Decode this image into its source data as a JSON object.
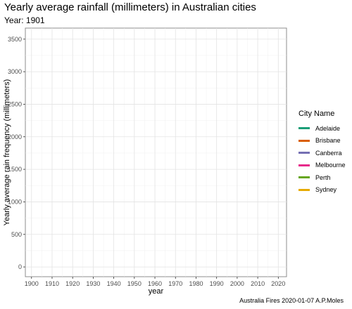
{
  "chart_data": {
    "type": "line",
    "title": "Yearly average rainfall (millimeters) in Australian cities",
    "subtitle": "Year: 1901",
    "xlabel": "year",
    "ylabel": "Yearly average rain frequency (millimeters)",
    "caption": "Australia Fires 2020-01-07 A.P.Moles",
    "xlim": [
      1897,
      2024
    ],
    "ylim": [
      -150,
      3670
    ],
    "x_ticks": [
      1900,
      1910,
      1920,
      1930,
      1940,
      1950,
      1960,
      1970,
      1980,
      1990,
      2000,
      2010,
      2020
    ],
    "y_ticks": [
      0,
      500,
      1000,
      1500,
      2000,
      2500,
      3000,
      3500
    ],
    "grid": true,
    "legend": {
      "title": "City Name",
      "position": "right"
    },
    "series": [
      {
        "name": "Adelaide",
        "color": "#1b9e77",
        "points": []
      },
      {
        "name": "Brisbane",
        "color": "#d95f02",
        "points": []
      },
      {
        "name": "Canberra",
        "color": "#7570b3",
        "points": []
      },
      {
        "name": "Melbourne",
        "color": "#e7298a",
        "points": []
      },
      {
        "name": "Perth",
        "color": "#66a61e",
        "points": []
      },
      {
        "name": "Sydney",
        "color": "#e6ab02",
        "points": []
      }
    ]
  }
}
